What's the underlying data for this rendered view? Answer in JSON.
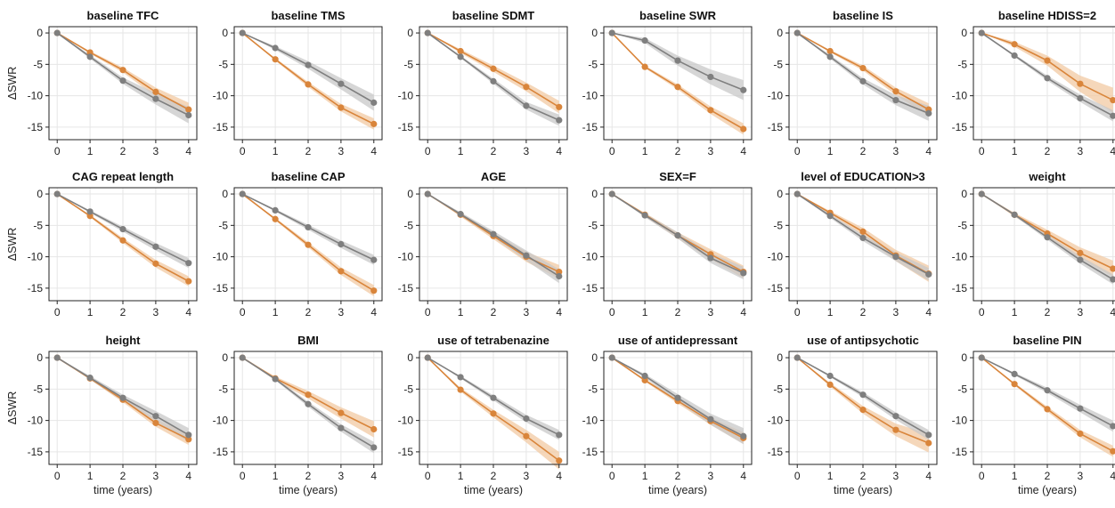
{
  "colors": {
    "orange": "#d9853b",
    "gray": "#7f7f7f",
    "orange_band": "#f2c9a3",
    "gray_band": "#c8c8c8"
  },
  "axis_text": {
    "ylabel": "ΔSWR",
    "xlabel": "time (years)"
  },
  "chart_data": [
    {
      "type": "line",
      "title": "baseline TFC",
      "x": [
        0,
        1,
        2,
        3,
        4
      ],
      "xlabel": "",
      "ylabel": "ΔSWR",
      "ylim": [
        -17,
        1
      ],
      "series": [
        {
          "color": "orange",
          "values": [
            0,
            -3.1,
            -5.9,
            -9.4,
            -12.2
          ],
          "band": [
            0,
            0.2,
            0.4,
            0.7,
            1.1
          ]
        },
        {
          "color": "gray",
          "values": [
            0,
            -3.8,
            -7.6,
            -10.5,
            -13.1
          ],
          "band": [
            0,
            0.3,
            0.5,
            0.9,
            1.3
          ]
        }
      ]
    },
    {
      "type": "line",
      "title": "baseline TMS",
      "x": [
        0,
        1,
        2,
        3,
        4
      ],
      "xlabel": "",
      "ylabel": "",
      "ylim": [
        -17,
        1
      ],
      "series": [
        {
          "color": "orange",
          "values": [
            0,
            -4.2,
            -8.2,
            -11.9,
            -14.5
          ],
          "band": [
            0,
            0.2,
            0.4,
            0.6,
            0.9
          ]
        },
        {
          "color": "gray",
          "values": [
            0,
            -2.4,
            -5.1,
            -8.1,
            -11.1
          ],
          "band": [
            0,
            0.3,
            0.6,
            0.9,
            1.3
          ]
        }
      ]
    },
    {
      "type": "line",
      "title": "baseline SDMT",
      "x": [
        0,
        1,
        2,
        3,
        4
      ],
      "xlabel": "",
      "ylabel": "",
      "ylim": [
        -17,
        1
      ],
      "series": [
        {
          "color": "orange",
          "values": [
            0,
            -2.9,
            -5.7,
            -8.6,
            -11.8
          ],
          "band": [
            0,
            0.3,
            0.5,
            0.7,
            1.0
          ]
        },
        {
          "color": "gray",
          "values": [
            0,
            -3.8,
            -7.7,
            -11.6,
            -13.9
          ],
          "band": [
            0,
            0.2,
            0.4,
            0.6,
            0.9
          ]
        }
      ]
    },
    {
      "type": "line",
      "title": "baseline SWR",
      "x": [
        0,
        1,
        2,
        3,
        4
      ],
      "xlabel": "",
      "ylabel": "",
      "ylim": [
        -17,
        1
      ],
      "series": [
        {
          "color": "orange",
          "values": [
            0,
            -5.4,
            -8.6,
            -12.3,
            -15.3
          ],
          "band": [
            0,
            0.2,
            0.4,
            0.6,
            0.9
          ]
        },
        {
          "color": "gray",
          "values": [
            0,
            -1.2,
            -4.4,
            -7.0,
            -9.1
          ],
          "band": [
            0,
            0.4,
            0.8,
            1.2,
            1.6
          ]
        }
      ]
    },
    {
      "type": "line",
      "title": "baseline IS",
      "x": [
        0,
        1,
        2,
        3,
        4
      ],
      "xlabel": "",
      "ylabel": "",
      "ylim": [
        -17,
        1
      ],
      "series": [
        {
          "color": "orange",
          "values": [
            0,
            -2.9,
            -5.6,
            -9.3,
            -12.2
          ],
          "band": [
            0,
            0.2,
            0.4,
            0.6,
            1.0
          ]
        },
        {
          "color": "gray",
          "values": [
            0,
            -3.8,
            -7.7,
            -10.7,
            -12.8
          ],
          "band": [
            0,
            0.3,
            0.5,
            0.8,
            1.2
          ]
        }
      ]
    },
    {
      "type": "line",
      "title": "baseline HDISS=2",
      "x": [
        0,
        1,
        2,
        3,
        4
      ],
      "xlabel": "",
      "ylabel": "",
      "ylim": [
        -17,
        1
      ],
      "series": [
        {
          "color": "orange",
          "values": [
            0,
            -1.8,
            -4.4,
            -8.1,
            -10.7
          ],
          "band": [
            0,
            0.4,
            0.8,
            1.3,
            2.0
          ]
        },
        {
          "color": "gray",
          "values": [
            0,
            -3.6,
            -7.2,
            -10.4,
            -13.2
          ],
          "band": [
            0,
            0.2,
            0.4,
            0.6,
            0.9
          ]
        }
      ]
    },
    {
      "type": "line",
      "title": "CAG repeat length",
      "x": [
        0,
        1,
        2,
        3,
        4
      ],
      "xlabel": "",
      "ylabel": "ΔSWR",
      "ylim": [
        -17,
        1
      ],
      "series": [
        {
          "color": "orange",
          "values": [
            0,
            -3.5,
            -7.4,
            -11.1,
            -13.9
          ],
          "band": [
            0,
            0.2,
            0.4,
            0.6,
            0.8
          ]
        },
        {
          "color": "gray",
          "values": [
            0,
            -2.8,
            -5.6,
            -8.4,
            -11.0
          ],
          "band": [
            0,
            0.2,
            0.4,
            0.6,
            0.8
          ]
        }
      ]
    },
    {
      "type": "line",
      "title": "baseline CAP",
      "x": [
        0,
        1,
        2,
        3,
        4
      ],
      "xlabel": "",
      "ylabel": "",
      "ylim": [
        -17,
        1
      ],
      "series": [
        {
          "color": "orange",
          "values": [
            0,
            -4.0,
            -8.1,
            -12.3,
            -15.4
          ],
          "band": [
            0,
            0.2,
            0.4,
            0.6,
            0.9
          ]
        },
        {
          "color": "gray",
          "values": [
            0,
            -2.6,
            -5.3,
            -8.0,
            -10.5
          ],
          "band": [
            0,
            0.2,
            0.4,
            0.6,
            0.8
          ]
        }
      ]
    },
    {
      "type": "line",
      "title": "AGE",
      "x": [
        0,
        1,
        2,
        3,
        4
      ],
      "xlabel": "",
      "ylabel": "",
      "ylim": [
        -17,
        1
      ],
      "series": [
        {
          "color": "orange",
          "values": [
            0,
            -3.3,
            -6.7,
            -10.0,
            -12.4
          ],
          "band": [
            0,
            0.3,
            0.5,
            0.8,
            1.1
          ]
        },
        {
          "color": "gray",
          "values": [
            0,
            -3.2,
            -6.4,
            -9.8,
            -13.1
          ],
          "band": [
            0,
            0.3,
            0.5,
            0.8,
            1.1
          ]
        }
      ]
    },
    {
      "type": "line",
      "title": "SEX=F",
      "x": [
        0,
        1,
        2,
        3,
        4
      ],
      "xlabel": "",
      "ylabel": "",
      "ylim": [
        -17,
        1
      ],
      "series": [
        {
          "color": "orange",
          "values": [
            0,
            -3.3,
            -6.6,
            -9.6,
            -12.4
          ],
          "band": [
            0,
            0.3,
            0.5,
            0.8,
            1.0
          ]
        },
        {
          "color": "gray",
          "values": [
            0,
            -3.4,
            -6.6,
            -10.2,
            -12.6
          ],
          "band": [
            0,
            0.3,
            0.5,
            0.8,
            1.0
          ]
        }
      ]
    },
    {
      "type": "line",
      "title": "level of EDUCATION>3",
      "x": [
        0,
        1,
        2,
        3,
        4
      ],
      "xlabel": "",
      "ylabel": "",
      "ylim": [
        -17,
        1
      ],
      "series": [
        {
          "color": "orange",
          "values": [
            0,
            -3.0,
            -6.0,
            -9.8,
            -12.7
          ],
          "band": [
            0,
            0.3,
            0.6,
            0.9,
            1.3
          ]
        },
        {
          "color": "gray",
          "values": [
            0,
            -3.5,
            -7.0,
            -10.0,
            -12.8
          ],
          "band": [
            0,
            0.3,
            0.5,
            0.7,
            1.0
          ]
        }
      ]
    },
    {
      "type": "line",
      "title": "weight",
      "x": [
        0,
        1,
        2,
        3,
        4
      ],
      "xlabel": "",
      "ylabel": "",
      "ylim": [
        -17,
        1
      ],
      "series": [
        {
          "color": "orange",
          "values": [
            0,
            -3.3,
            -6.3,
            -9.4,
            -11.9
          ],
          "band": [
            0,
            0.3,
            0.6,
            0.9,
            1.3
          ]
        },
        {
          "color": "gray",
          "values": [
            0,
            -3.3,
            -6.9,
            -10.5,
            -13.6
          ],
          "band": [
            0,
            0.2,
            0.4,
            0.6,
            0.8
          ]
        }
      ]
    },
    {
      "type": "line",
      "title": "height",
      "x": [
        0,
        1,
        2,
        3,
        4
      ],
      "xlabel": "time (years)",
      "ylabel": "ΔSWR",
      "ylim": [
        -17,
        1
      ],
      "series": [
        {
          "color": "orange",
          "values": [
            0,
            -3.3,
            -6.7,
            -10.4,
            -13.0
          ],
          "band": [
            0,
            0.2,
            0.4,
            0.6,
            0.9
          ]
        },
        {
          "color": "gray",
          "values": [
            0,
            -3.2,
            -6.4,
            -9.3,
            -12.3
          ],
          "band": [
            0,
            0.3,
            0.5,
            0.8,
            1.1
          ]
        }
      ]
    },
    {
      "type": "line",
      "title": "BMI",
      "x": [
        0,
        1,
        2,
        3,
        4
      ],
      "xlabel": "time (years)",
      "ylabel": "",
      "ylim": [
        -17,
        1
      ],
      "series": [
        {
          "color": "orange",
          "values": [
            0,
            -3.3,
            -5.9,
            -8.8,
            -11.4
          ],
          "band": [
            0,
            0.3,
            0.6,
            0.9,
            1.3
          ]
        },
        {
          "color": "gray",
          "values": [
            0,
            -3.4,
            -7.4,
            -11.2,
            -14.3
          ],
          "band": [
            0,
            0.2,
            0.4,
            0.6,
            0.9
          ]
        }
      ]
    },
    {
      "type": "line",
      "title": "use of tetrabenazine",
      "x": [
        0,
        1,
        2,
        3,
        4
      ],
      "xlabel": "time (years)",
      "ylabel": "",
      "ylim": [
        -17,
        1
      ],
      "series": [
        {
          "color": "orange",
          "values": [
            0,
            -5.1,
            -8.9,
            -12.5,
            -16.4
          ],
          "band": [
            0,
            0.3,
            0.6,
            1.0,
            1.4
          ]
        },
        {
          "color": "gray",
          "values": [
            0,
            -3.1,
            -6.4,
            -9.7,
            -12.3
          ],
          "band": [
            0,
            0.2,
            0.4,
            0.6,
            0.8
          ]
        }
      ]
    },
    {
      "type": "line",
      "title": "use of antidepressant",
      "x": [
        0,
        1,
        2,
        3,
        4
      ],
      "xlabel": "time (years)",
      "ylabel": "",
      "ylim": [
        -17,
        1
      ],
      "series": [
        {
          "color": "orange",
          "values": [
            0,
            -3.6,
            -6.9,
            -10.1,
            -12.8
          ],
          "band": [
            0,
            0.2,
            0.4,
            0.6,
            0.9
          ]
        },
        {
          "color": "gray",
          "values": [
            0,
            -2.9,
            -6.4,
            -9.8,
            -12.5
          ],
          "band": [
            0,
            0.3,
            0.6,
            0.9,
            1.3
          ]
        }
      ]
    },
    {
      "type": "line",
      "title": "use of antipsychotic",
      "x": [
        0,
        1,
        2,
        3,
        4
      ],
      "xlabel": "time (years)",
      "ylabel": "",
      "ylim": [
        -17,
        1
      ],
      "series": [
        {
          "color": "orange",
          "values": [
            0,
            -4.3,
            -8.3,
            -11.5,
            -13.6
          ],
          "band": [
            0,
            0.3,
            0.6,
            1.0,
            1.5
          ]
        },
        {
          "color": "gray",
          "values": [
            0,
            -2.9,
            -5.9,
            -9.3,
            -12.3
          ],
          "band": [
            0,
            0.2,
            0.4,
            0.6,
            0.8
          ]
        }
      ]
    },
    {
      "type": "line",
      "title": "baseline PIN",
      "x": [
        0,
        1,
        2,
        3,
        4
      ],
      "xlabel": "time (years)",
      "ylabel": "",
      "ylim": [
        -17,
        1
      ],
      "series": [
        {
          "color": "orange",
          "values": [
            0,
            -4.2,
            -8.2,
            -12.1,
            -14.9
          ],
          "band": [
            0,
            0.2,
            0.4,
            0.6,
            0.9
          ]
        },
        {
          "color": "gray",
          "values": [
            0,
            -2.6,
            -5.2,
            -8.1,
            -10.9
          ],
          "band": [
            0,
            0.2,
            0.4,
            0.6,
            0.9
          ]
        }
      ]
    }
  ]
}
